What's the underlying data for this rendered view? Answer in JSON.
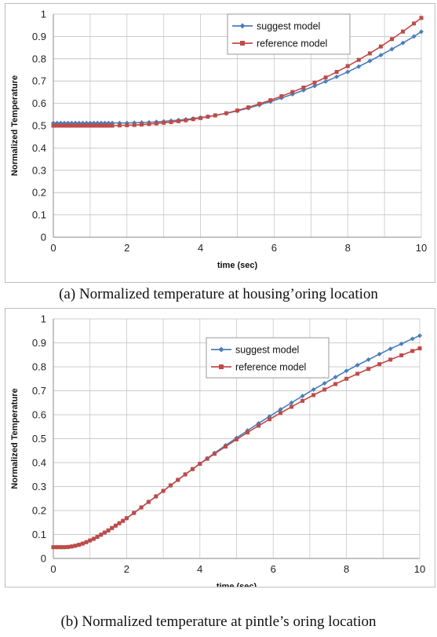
{
  "chart_data": [
    {
      "type": "line",
      "caption": "(a) Normalized temperature at housing’oring location",
      "xlabel": "time (sec)",
      "ylabel": "Normalized Temperature",
      "xlim": [
        0,
        10
      ],
      "ylim": [
        0,
        1
      ],
      "xticks": [
        "0",
        "2",
        "4",
        "6",
        "8",
        "10"
      ],
      "yticks": [
        "0",
        "0.1",
        "0.2",
        "0.3",
        "0.4",
        "0.5",
        "0.6",
        "0.7",
        "0.8",
        "0.9",
        "1"
      ],
      "grid": true,
      "legend": "top-right",
      "series": [
        {
          "name": "suggest model",
          "color": "#4a7ebb",
          "marker": "diamond",
          "x": [
            0,
            0.1,
            0.2,
            0.3,
            0.4,
            0.5,
            0.6,
            0.7,
            0.8,
            0.9,
            1.0,
            1.1,
            1.2,
            1.3,
            1.4,
            1.5,
            1.6,
            1.8,
            2.0,
            2.2,
            2.4,
            2.6,
            2.8,
            3.0,
            3.2,
            3.4,
            3.6,
            3.8,
            4.0,
            4.2,
            4.4,
            4.7,
            5.0,
            5.3,
            5.6,
            5.9,
            6.2,
            6.5,
            6.8,
            7.1,
            7.4,
            7.7,
            8.0,
            8.3,
            8.6,
            8.9,
            9.2,
            9.5,
            9.8,
            10.0
          ],
          "y": [
            0.512,
            0.512,
            0.512,
            0.512,
            0.512,
            0.512,
            0.512,
            0.512,
            0.512,
            0.512,
            0.512,
            0.512,
            0.512,
            0.512,
            0.512,
            0.512,
            0.512,
            0.512,
            0.512,
            0.513,
            0.514,
            0.515,
            0.517,
            0.519,
            0.522,
            0.525,
            0.528,
            0.532,
            0.536,
            0.541,
            0.546,
            0.555,
            0.566,
            0.579,
            0.593,
            0.608,
            0.624,
            0.641,
            0.659,
            0.678,
            0.698,
            0.719,
            0.741,
            0.765,
            0.79,
            0.816,
            0.843,
            0.871,
            0.9,
            0.921
          ]
        },
        {
          "name": "reference model",
          "color": "#be4b48",
          "marker": "square",
          "x": [
            0,
            0.1,
            0.2,
            0.3,
            0.4,
            0.5,
            0.6,
            0.7,
            0.8,
            0.9,
            1.0,
            1.1,
            1.2,
            1.3,
            1.4,
            1.5,
            1.6,
            1.8,
            2.0,
            2.2,
            2.4,
            2.6,
            2.8,
            3.0,
            3.2,
            3.4,
            3.6,
            3.8,
            4.0,
            4.2,
            4.4,
            4.7,
            5.0,
            5.3,
            5.6,
            5.9,
            6.2,
            6.5,
            6.8,
            7.1,
            7.4,
            7.7,
            8.0,
            8.3,
            8.6,
            8.9,
            9.2,
            9.5,
            9.8,
            10.0
          ],
          "y": [
            0.5,
            0.5,
            0.5,
            0.5,
            0.5,
            0.5,
            0.5,
            0.5,
            0.5,
            0.5,
            0.5,
            0.5,
            0.5,
            0.5,
            0.5,
            0.5,
            0.5,
            0.501,
            0.502,
            0.503,
            0.505,
            0.507,
            0.51,
            0.513,
            0.516,
            0.52,
            0.524,
            0.529,
            0.534,
            0.54,
            0.546,
            0.556,
            0.568,
            0.582,
            0.598,
            0.614,
            0.632,
            0.651,
            0.671,
            0.693,
            0.716,
            0.741,
            0.767,
            0.795,
            0.824,
            0.855,
            0.888,
            0.922,
            0.958,
            0.983
          ]
        }
      ]
    },
    {
      "type": "line",
      "caption": "(b) Normalized temperature at pintle’s oring location",
      "xlabel": "time (sec)",
      "ylabel": "Normalized Temperature",
      "xlim": [
        0,
        10
      ],
      "ylim": [
        0,
        1
      ],
      "xticks": [
        "0",
        "2",
        "4",
        "6",
        "8",
        "10"
      ],
      "yticks": [
        "0",
        "0.1",
        "0.2",
        "0.3",
        "0.4",
        "0.5",
        "0.6",
        "0.7",
        "0.8",
        "0.9",
        "1"
      ],
      "grid": true,
      "legend": "top-right",
      "series": [
        {
          "name": "suggest model",
          "color": "#4a7ebb",
          "marker": "diamond",
          "x": [
            0,
            0.1,
            0.2,
            0.3,
            0.4,
            0.5,
            0.6,
            0.7,
            0.8,
            0.9,
            1.0,
            1.1,
            1.2,
            1.3,
            1.4,
            1.5,
            1.6,
            1.7,
            1.8,
            1.9,
            2.0,
            2.2,
            2.4,
            2.6,
            2.8,
            3.0,
            3.2,
            3.4,
            3.6,
            3.8,
            4.0,
            4.2,
            4.4,
            4.7,
            5.0,
            5.3,
            5.6,
            5.9,
            6.2,
            6.5,
            6.8,
            7.1,
            7.4,
            7.7,
            8.0,
            8.3,
            8.6,
            8.9,
            9.2,
            9.5,
            9.8,
            10.0
          ],
          "y": [
            0.047,
            0.047,
            0.047,
            0.047,
            0.048,
            0.05,
            0.053,
            0.057,
            0.062,
            0.068,
            0.075,
            0.082,
            0.09,
            0.099,
            0.108,
            0.117,
            0.127,
            0.137,
            0.147,
            0.157,
            0.168,
            0.19,
            0.213,
            0.236,
            0.259,
            0.282,
            0.305,
            0.328,
            0.351,
            0.373,
            0.396,
            0.418,
            0.44,
            0.472,
            0.503,
            0.534,
            0.564,
            0.593,
            0.622,
            0.65,
            0.678,
            0.705,
            0.731,
            0.757,
            0.783,
            0.807,
            0.83,
            0.853,
            0.875,
            0.896,
            0.917,
            0.93
          ]
        },
        {
          "name": "reference model",
          "color": "#be4b48",
          "marker": "square",
          "x": [
            0,
            0.1,
            0.2,
            0.3,
            0.4,
            0.5,
            0.6,
            0.7,
            0.8,
            0.9,
            1.0,
            1.1,
            1.2,
            1.3,
            1.4,
            1.5,
            1.6,
            1.7,
            1.8,
            1.9,
            2.0,
            2.2,
            2.4,
            2.6,
            2.8,
            3.0,
            3.2,
            3.4,
            3.6,
            3.8,
            4.0,
            4.2,
            4.4,
            4.7,
            5.0,
            5.3,
            5.6,
            5.9,
            6.2,
            6.5,
            6.8,
            7.1,
            7.4,
            7.7,
            8.0,
            8.3,
            8.6,
            8.9,
            9.2,
            9.5,
            9.8,
            10.0
          ],
          "y": [
            0.047,
            0.047,
            0.047,
            0.047,
            0.048,
            0.05,
            0.053,
            0.057,
            0.062,
            0.068,
            0.075,
            0.082,
            0.09,
            0.099,
            0.108,
            0.117,
            0.127,
            0.137,
            0.147,
            0.157,
            0.168,
            0.19,
            0.213,
            0.236,
            0.259,
            0.282,
            0.305,
            0.328,
            0.351,
            0.373,
            0.395,
            0.416,
            0.437,
            0.467,
            0.497,
            0.526,
            0.554,
            0.581,
            0.607,
            0.633,
            0.658,
            0.682,
            0.705,
            0.728,
            0.75,
            0.771,
            0.791,
            0.811,
            0.83,
            0.848,
            0.866,
            0.877
          ]
        }
      ]
    }
  ]
}
